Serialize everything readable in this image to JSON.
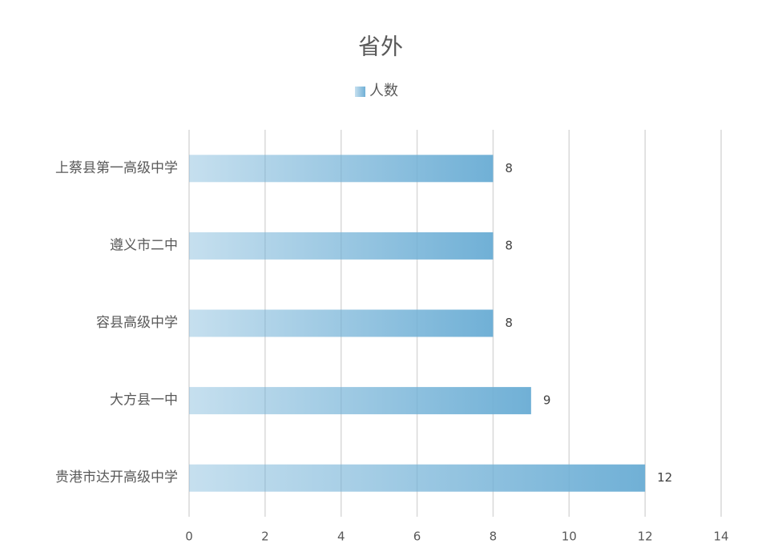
{
  "chart_data": {
    "type": "hbar",
    "title": "省外",
    "categories": [
      "上蔡县第一高级中学",
      "遵义市二中",
      "容县高级中学",
      "大方县一中",
      "贵港市达开高级中学"
    ],
    "series": [
      {
        "name": "人数",
        "color": "#70b0d6",
        "values": [
          8,
          8,
          8,
          9,
          12
        ]
      }
    ],
    "xlim": [
      0,
      14
    ],
    "xticks": [
      0,
      2,
      4,
      6,
      8,
      10,
      12,
      14
    ],
    "grid": true,
    "legend": "top"
  }
}
